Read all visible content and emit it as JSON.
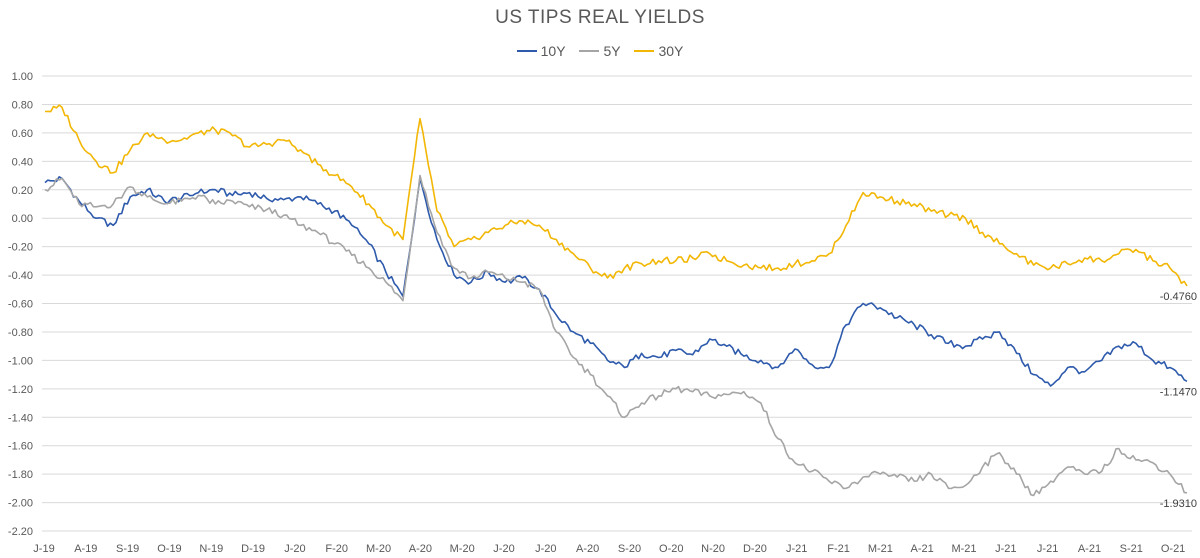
{
  "chart_data": {
    "type": "line",
    "title": "US TIPS REAL YIELDS",
    "xlabel": "",
    "ylabel": "",
    "ylim": [
      -2.2,
      1.0
    ],
    "y_ticks": [
      "1.00",
      "0.80",
      "0.60",
      "0.40",
      "0.20",
      "0.00",
      "-0.20",
      "-0.40",
      "-0.60",
      "-0.80",
      "-1.00",
      "-1.20",
      "-1.40",
      "-1.60",
      "-1.80",
      "-2.00",
      "-2.20"
    ],
    "x_ticks": [
      "J-19",
      "A-19",
      "S-19",
      "O-19",
      "N-19",
      "D-19",
      "J-20",
      "F-20",
      "M-20",
      "A-20",
      "M-20",
      "J-20",
      "J-20",
      "A-20",
      "S-20",
      "O-20",
      "N-20",
      "D-20",
      "J-21",
      "F-21",
      "M-21",
      "A-21",
      "M-21",
      "J-21",
      "J-21",
      "A-21",
      "S-21",
      "O-21"
    ],
    "grid": "horizontal",
    "legend_position": "top",
    "series": [
      {
        "name": "10Y",
        "color": "#2E5AAC",
        "end_label": "-1.1470",
        "values": [
          0.25,
          0.28,
          0.12,
          0.0,
          -0.05,
          0.15,
          0.2,
          0.12,
          0.14,
          0.18,
          0.2,
          0.16,
          0.18,
          0.14,
          0.13,
          0.15,
          0.1,
          0.05,
          -0.05,
          -0.18,
          -0.38,
          -0.55,
          0.28,
          -0.15,
          -0.4,
          -0.45,
          -0.38,
          -0.45,
          -0.42,
          -0.5,
          -0.68,
          -0.8,
          -0.88,
          -1.0,
          -1.05,
          -0.95,
          -0.98,
          -0.93,
          -0.96,
          -0.85,
          -0.9,
          -0.97,
          -1.0,
          -1.05,
          -0.92,
          -1.03,
          -1.05,
          -0.75,
          -0.6,
          -0.63,
          -0.7,
          -0.75,
          -0.82,
          -0.88,
          -0.9,
          -0.85,
          -0.8,
          -0.95,
          -1.1,
          -1.18,
          -1.05,
          -1.08,
          -1.0,
          -0.9,
          -0.88,
          -1.0,
          -1.05,
          -1.147
        ]
      },
      {
        "name": "5Y",
        "color": "#A5A5A5",
        "end_label": "-1.9310",
        "values": [
          0.2,
          0.28,
          0.1,
          0.08,
          0.1,
          0.22,
          0.15,
          0.1,
          0.12,
          0.16,
          0.1,
          0.12,
          0.08,
          0.06,
          0.02,
          -0.05,
          -0.1,
          -0.18,
          -0.26,
          -0.35,
          -0.45,
          -0.58,
          0.3,
          -0.1,
          -0.35,
          -0.42,
          -0.38,
          -0.42,
          -0.45,
          -0.5,
          -0.8,
          -0.98,
          -1.1,
          -1.25,
          -1.4,
          -1.3,
          -1.25,
          -1.2,
          -1.22,
          -1.25,
          -1.24,
          -1.22,
          -1.3,
          -1.55,
          -1.72,
          -1.78,
          -1.85,
          -1.9,
          -1.82,
          -1.8,
          -1.82,
          -1.85,
          -1.8,
          -1.9,
          -1.88,
          -1.75,
          -1.65,
          -1.8,
          -1.95,
          -1.85,
          -1.75,
          -1.8,
          -1.78,
          -1.62,
          -1.7,
          -1.72,
          -1.8,
          -1.931
        ]
      },
      {
        "name": "30Y",
        "color": "#F2B705",
        "end_label": "-0.4760",
        "values": [
          0.75,
          0.78,
          0.55,
          0.4,
          0.32,
          0.48,
          0.6,
          0.55,
          0.55,
          0.6,
          0.62,
          0.58,
          0.5,
          0.52,
          0.55,
          0.48,
          0.38,
          0.3,
          0.22,
          0.1,
          -0.05,
          -0.15,
          0.7,
          0.05,
          -0.2,
          -0.15,
          -0.1,
          -0.05,
          -0.02,
          -0.05,
          -0.15,
          -0.25,
          -0.35,
          -0.42,
          -0.35,
          -0.32,
          -0.3,
          -0.3,
          -0.28,
          -0.25,
          -0.3,
          -0.33,
          -0.35,
          -0.35,
          -0.32,
          -0.3,
          -0.25,
          -0.05,
          0.18,
          0.15,
          0.12,
          0.1,
          0.05,
          0.02,
          0.0,
          -0.1,
          -0.18,
          -0.25,
          -0.33,
          -0.35,
          -0.32,
          -0.28,
          -0.3,
          -0.25,
          -0.22,
          -0.3,
          -0.35,
          -0.476
        ]
      }
    ]
  }
}
